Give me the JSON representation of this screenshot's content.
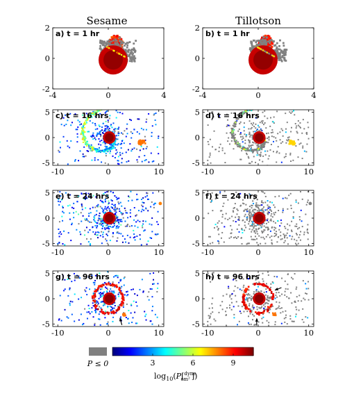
{
  "figure": {
    "column_titles": [
      "Sesame",
      "Tillotson"
    ]
  },
  "chart_data": [
    {
      "type": "scatter",
      "panel": "a) t = 1 hr",
      "eos": "Sesame",
      "time_hr": 1,
      "xlim": [
        -4,
        4
      ],
      "ylim": [
        -2,
        2
      ],
      "xticks": [
        "-4",
        "0",
        "4"
      ],
      "yticks": [
        "-2",
        "0",
        "2"
      ]
    },
    {
      "type": "scatter",
      "panel": "b) t = 1 hr",
      "eos": "Tillotson",
      "time_hr": 1,
      "xlim": [
        -4,
        4
      ],
      "ylim": [
        -2,
        2
      ],
      "xticks": [
        "-4",
        "0",
        "4"
      ],
      "yticks": [
        "-2",
        "0",
        "2"
      ]
    },
    {
      "type": "scatter",
      "panel": "c) t = 16 hrs",
      "eos": "Sesame",
      "time_hr": 16,
      "xlim": [
        -11,
        11
      ],
      "ylim": [
        -5.5,
        5.5
      ],
      "xticks": [
        "-10",
        "0",
        "10"
      ],
      "yticks": [
        "-5",
        "0",
        "5"
      ]
    },
    {
      "type": "scatter",
      "panel": "d) t = 16 hrs",
      "eos": "Tillotson",
      "time_hr": 16,
      "xlim": [
        -11,
        11
      ],
      "ylim": [
        -5.5,
        5.5
      ],
      "xticks": [
        "-10",
        "0",
        "10"
      ],
      "yticks": [
        "-5",
        "0",
        "5"
      ]
    },
    {
      "type": "scatter",
      "panel": "e) t = 24 hrs",
      "eos": "Sesame",
      "time_hr": 24,
      "xlim": [
        -11,
        11
      ],
      "ylim": [
        -5.5,
        5.5
      ],
      "xticks": [
        "-10",
        "0",
        "10"
      ],
      "yticks": [
        "-5",
        "0",
        "5"
      ]
    },
    {
      "type": "scatter",
      "panel": "f) t = 24 hrs",
      "eos": "Tillotson",
      "time_hr": 24,
      "xlim": [
        -11,
        11
      ],
      "ylim": [
        -5.5,
        5.5
      ],
      "xticks": [
        "-10",
        "0",
        "10"
      ],
      "yticks": [
        "-5",
        "0",
        "5"
      ]
    },
    {
      "type": "scatter",
      "panel": "g) t = 96 hrs",
      "eos": "Sesame",
      "time_hr": 96,
      "xlim": [
        -11,
        11
      ],
      "ylim": [
        -5.5,
        5.5
      ],
      "xticks": [
        "-10",
        "0",
        "10"
      ],
      "yticks": [
        "-5",
        "0",
        "5"
      ]
    },
    {
      "type": "scatter",
      "panel": "h) t = 96 hrs",
      "eos": "Tillotson",
      "time_hr": 96,
      "xlim": [
        -11,
        11
      ],
      "ylim": [
        -5.5,
        5.5
      ],
      "xticks": [
        "-10",
        "0",
        "10"
      ],
      "yticks": [
        "-5",
        "0",
        "5"
      ]
    }
  ],
  "colorbar": {
    "nonpositive_label": "P ≤ 0",
    "nonpositive_color": "#808080",
    "ticks": [
      "3",
      "6",
      "9"
    ],
    "tick_values": [
      3,
      6,
      9
    ],
    "range": [
      0,
      10.5
    ],
    "label_prefix": "log",
    "label_sub": "10",
    "label_P": "P",
    "label_num": "dyne",
    "label_den": "cm²",
    "colormap": "jet"
  }
}
